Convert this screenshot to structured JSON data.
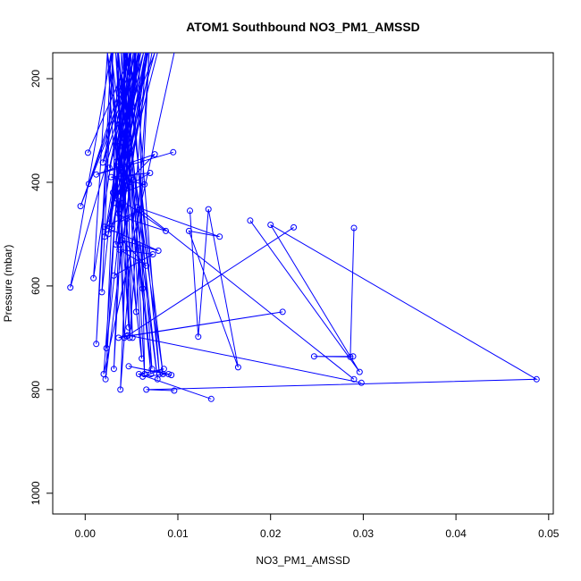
{
  "chart_data": {
    "type": "line",
    "title": "ATOM1 Southbound NO3_PM1_AMSSD",
    "xlabel": "NO3_PM1_AMSSD",
    "ylabel": "Pressure (mbar)",
    "xlim": [
      -0.0035,
      0.0505
    ],
    "ylim": [
      1040,
      150
    ],
    "y_reversed": true,
    "grid": false,
    "x_ticks": [
      {
        "value": 0.0,
        "label": "0.00"
      },
      {
        "value": 0.01,
        "label": "0.01"
      },
      {
        "value": 0.02,
        "label": "0.02"
      },
      {
        "value": 0.03,
        "label": "0.03"
      },
      {
        "value": 0.04,
        "label": "0.04"
      },
      {
        "value": 0.05,
        "label": "0.05"
      }
    ],
    "y_ticks": [
      {
        "value": 200,
        "label": "200"
      },
      {
        "value": 400,
        "label": "400"
      },
      {
        "value": 600,
        "label": "600"
      },
      {
        "value": 800,
        "label": "800"
      },
      {
        "value": 1000,
        "label": "1000"
      }
    ],
    "series": [
      {
        "color": "#0000ff",
        "marker": "open-circle",
        "x": [
          0.0058,
          -0.0016,
          0.0028,
          0.0012,
          0.003,
          0.0018,
          0.0046,
          0.0009,
          0.0024,
          0.0062,
          0.0035,
          0.0042,
          0.0029,
          0.0037,
          0.0024,
          0.0061,
          0.0041,
          0.0055,
          0.0069,
          0.0048,
          0.0039,
          0.0078,
          0.0033,
          0.0051,
          0.0042,
          0.0071,
          0.0036,
          0.0023,
          0.0058,
          0.0064,
          0.0044,
          0.0031,
          0.0049,
          0.0072,
          0.0028,
          0.0047,
          0.0035,
          0.0084,
          0.0043,
          0.0022,
          0.0066,
          0.0038,
          0.0053,
          0.008,
          0.0045,
          0.002,
          0.0096
        ],
        "y": [
          150,
          603,
          150,
          712,
          150,
          612,
          150,
          585,
          150,
          605,
          150,
          700,
          150,
          520,
          150,
          740,
          150,
          650,
          150,
          700,
          150,
          780,
          150,
          700,
          150,
          770,
          150,
          720,
          150,
          770,
          150,
          760,
          150,
          760,
          150,
          680,
          150,
          770,
          150,
          780,
          150,
          800,
          150,
          770,
          150,
          770,
          150
        ]
      },
      {
        "color": "#0000ff",
        "marker": "open-circle",
        "x": [
          0.0003,
          0.005,
          0.0004,
          0.0055,
          -0.0005,
          0.006,
          0.0019,
          0.0048,
          0.0033,
          0.0063,
          0.0026,
          0.0054,
          0.0044,
          0.0068,
          0.0037,
          0.0075,
          0.0031,
          0.006,
          0.0025,
          0.0058,
          0.004,
          0.0067,
          0.0036,
          0.0052,
          0.0021,
          0.0063,
          0.003,
          0.0045,
          0.0026,
          0.0057,
          0.0034,
          0.0049,
          0.0039,
          0.0072,
          0.0033,
          0.0055,
          0.0041,
          0.0065,
          0.0029,
          0.0078
        ],
        "y": [
          343,
          150,
          403,
          150,
          446,
          150,
          362,
          150,
          418,
          150,
          372,
          150,
          396,
          150,
          330,
          150,
          440,
          150,
          500,
          150,
          380,
          150,
          460,
          150,
          505,
          150,
          420,
          150,
          480,
          150,
          360,
          150,
          470,
          150,
          520,
          150,
          440,
          150,
          490,
          150
        ]
      },
      {
        "color": "#0000ff",
        "marker": "open-circle",
        "x": [
          0.0095,
          0.0038,
          0.0012,
          0.0075,
          0.005,
          0.0034,
          0.007,
          0.0028,
          0.0064,
          0.0032,
          0.0087,
          0.0045,
          0.0058,
          0.0021,
          0.0079,
          0.004,
          0.0066,
          0.0037,
          0.0073,
          0.0031
        ],
        "y": [
          342,
          372,
          385,
          346,
          392,
          420,
          382,
          390,
          404,
          426,
          494,
          470,
          454,
          486,
          532,
          512,
          561,
          530,
          539,
          580
        ]
      },
      {
        "color": "#0000ff",
        "marker": "open-circle",
        "x": [
          0.0113,
          0.0122,
          0.0133,
          0.0165,
          0.0112,
          0.0145,
          0.0056,
          0.029
        ],
        "y": [
          455,
          698,
          452,
          757,
          494,
          505,
          448,
          780
        ]
      },
      {
        "color": "#0000ff",
        "marker": "open-circle",
        "x": [
          0.0225,
          0.0045,
          0.0213,
          0.0036,
          0.0046,
          0.0298
        ],
        "y": [
          487,
          697,
          650,
          700,
          695,
          787
        ]
      },
      {
        "color": "#0000ff",
        "marker": "open-circle",
        "x": [
          0.029,
          0.0286,
          0.0247,
          0.0289
        ],
        "y": [
          488,
          737,
          736,
          736
        ]
      },
      {
        "color": "#0000ff",
        "marker": "open-circle",
        "x": [
          0.0178,
          0.0296,
          0.02,
          0.0487,
          0.0066,
          0.0096
        ],
        "y": [
          474,
          766,
          482,
          780,
          800,
          802
        ]
      },
      {
        "color": "#0000ff",
        "marker": "open-circle",
        "x": [
          0.0136,
          0.0058,
          0.0085,
          0.0062,
          0.009,
          0.0047,
          0.0093
        ],
        "y": [
          818,
          770,
          760,
          775,
          770,
          755,
          772
        ]
      }
    ]
  }
}
